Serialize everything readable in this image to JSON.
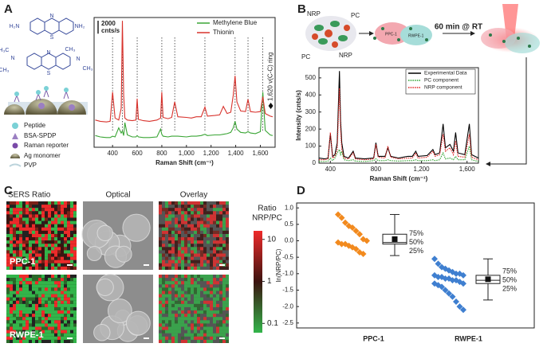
{
  "panel_labels": [
    "A",
    "B",
    "C",
    "D"
  ],
  "panel_a": {
    "molecules": [
      {
        "labels": [
          "H₂N",
          "N",
          "S",
          "NH₂"
        ]
      },
      {
        "labels": [
          "H₃C",
          "N",
          "CH₃",
          "N",
          "S",
          "N",
          "CH₃",
          "CH₃"
        ]
      }
    ],
    "legend": [
      "Peptide",
      "BSA-SPDP",
      "Raman reporter",
      "Ag monomer",
      "PVP"
    ]
  },
  "panel_b": {
    "labels": [
      "NRP",
      "PC",
      "NRP",
      "PC"
    ],
    "cell_labels": [
      "PPC-1",
      "RWPE-1"
    ],
    "step": "60 min @ RT"
  },
  "panel_c": {
    "columns": [
      "SERS Ratio",
      "Optical",
      "Overlay"
    ],
    "rows": [
      "PPC-1",
      "RWPE-1"
    ],
    "colorbar": {
      "title": [
        "Ratio",
        "NRP/PC"
      ],
      "ticks": [
        10,
        1,
        0.1
      ],
      "lim": [
        0.06,
        16
      ],
      "log": true,
      "colors": [
        "#33b54a",
        "#3b1410",
        "#ee2a2a"
      ]
    }
  },
  "chart_data": [
    {
      "type": "line",
      "x_label": "Raman Shift (cm⁻¹)",
      "x": [
        260,
        300,
        350,
        380,
        400,
        420,
        450,
        470,
        480,
        490,
        500,
        520,
        560,
        590,
        600,
        610,
        650,
        700,
        760,
        790,
        800,
        810,
        850,
        880,
        905,
        930,
        1000,
        1040,
        1080,
        1120,
        1150,
        1170,
        1230,
        1270,
        1300,
        1330,
        1360,
        1380,
        1395,
        1410,
        1440,
        1480,
        1500,
        1520,
        1560,
        1600,
        1620,
        1640,
        1680,
        1700
      ],
      "series": [
        {
          "name": "Methylene Blue",
          "color": "#3aa535",
          "values": [
            1800,
            1600,
            1500,
            1500,
            1700,
            1600,
            3000,
            2200,
            2500,
            1800,
            3800,
            1900,
            1600,
            1600,
            1800,
            1600,
            1500,
            1500,
            1600,
            2800,
            2000,
            1700,
            1600,
            1700,
            1700,
            1700,
            1600,
            1700,
            1700,
            1800,
            2000,
            1800,
            1900,
            1900,
            2000,
            2100,
            2300,
            3000,
            4000,
            2800,
            2300,
            2200,
            2400,
            2200,
            2100,
            2400,
            8500,
            2600,
            1900,
            1800
          ]
        },
        {
          "name": "Thionin",
          "color": "#d8322c",
          "values": [
            4200,
            4000,
            3900,
            4000,
            8500,
            4500,
            4200,
            6000,
            19500,
            8000,
            4500,
            4200,
            4100,
            4200,
            7500,
            4300,
            4100,
            4000,
            4200,
            4500,
            8500,
            4600,
            4400,
            4600,
            7000,
            4700,
            4600,
            4500,
            4700,
            4700,
            6200,
            4800,
            4900,
            5000,
            6300,
            5200,
            5400,
            8000,
            11000,
            7000,
            5600,
            5500,
            7400,
            5500,
            5400,
            5500,
            7800,
            5200,
            4800,
            4700
          ]
        }
      ],
      "xlim": [
        250,
        1720
      ],
      "xticks": [
        400,
        600,
        800,
        {
          "value": 1000,
          "label": "1,000"
        },
        {
          "value": 1200,
          "label": "1,200"
        },
        {
          "value": 1400,
          "label": "1,400"
        },
        {
          "value": 1600,
          "label": "1,600"
        }
      ],
      "ylim": [
        0,
        20000
      ],
      "scale_bar": {
        "value": 2000,
        "unit": "cnts/s"
      },
      "reference_lines": [
        400,
        480,
        600,
        800,
        905,
        1150,
        1395,
        1500,
        1620
      ],
      "annotation": {
        "text": "1,620 ν(C-C) ring",
        "x": 1620
      },
      "legend": "upper right"
    },
    {
      "type": "line",
      "x_label": "Raman Shift (cm⁻¹)",
      "y_label": "Intensity (cnts/s)",
      "x": [
        300,
        350,
        380,
        400,
        420,
        440,
        460,
        480,
        490,
        500,
        520,
        560,
        600,
        620,
        700,
        780,
        800,
        820,
        880,
        905,
        930,
        1000,
        1080,
        1120,
        1150,
        1170,
        1250,
        1300,
        1320,
        1360,
        1390,
        1410,
        1450,
        1480,
        1500,
        1520,
        1580,
        1620,
        1640,
        1700
      ],
      "series": [
        {
          "name": "Experimental Data",
          "color": "#000000",
          "style": "solid",
          "values": [
            30,
            25,
            30,
            170,
            40,
            50,
            120,
            540,
            250,
            120,
            40,
            30,
            70,
            30,
            25,
            30,
            120,
            40,
            40,
            90,
            40,
            30,
            40,
            40,
            70,
            40,
            45,
            80,
            50,
            60,
            230,
            90,
            110,
            70,
            180,
            60,
            50,
            230,
            50,
            30
          ]
        },
        {
          "name": "PC component",
          "color": "#2ca02c",
          "style": "dotted",
          "values": [
            10,
            10,
            12,
            30,
            15,
            30,
            60,
            80,
            50,
            70,
            20,
            15,
            20,
            12,
            10,
            15,
            25,
            15,
            15,
            20,
            15,
            12,
            15,
            15,
            20,
            15,
            15,
            20,
            15,
            20,
            60,
            25,
            30,
            20,
            40,
            20,
            20,
            100,
            20,
            10
          ]
        },
        {
          "name": "NRP component",
          "color": "#e0201e",
          "style": "dotted",
          "values": [
            20,
            20,
            25,
            180,
            30,
            40,
            80,
            440,
            200,
            80,
            30,
            25,
            60,
            25,
            20,
            25,
            110,
            35,
            30,
            100,
            35,
            25,
            30,
            30,
            60,
            30,
            35,
            70,
            40,
            50,
            170,
            70,
            90,
            50,
            130,
            40,
            35,
            170,
            35,
            20
          ]
        }
      ],
      "xlim": [
        300,
        1700
      ],
      "xticks": [
        400,
        800,
        {
          "value": 1200,
          "label": "1,200"
        },
        {
          "value": 1600,
          "label": "1,600"
        }
      ],
      "ylim": [
        0,
        560
      ],
      "yticks": [
        0,
        100,
        200,
        300,
        400,
        500
      ],
      "legend": "upper right"
    },
    {
      "type": "box",
      "y_label": "ln(NRP/PC)",
      "categories": [
        "PPC-1",
        "RWPE-1"
      ],
      "ylim": [
        -2.65,
        1.15
      ],
      "yticks": [
        {
          "value": 1,
          "label": "1.0"
        },
        0.5,
        {
          "value": 0,
          "label": "0.0"
        },
        -0.5,
        {
          "value": -1,
          "label": "-1.0"
        },
        -1.5,
        {
          "value": -2,
          "label": "-2.0"
        },
        -2.5
      ],
      "box_labels": [
        "75%",
        "50%",
        "25%"
      ],
      "groups": [
        {
          "color": "#f28a1e",
          "values": [
            0.8,
            0.7,
            0.55,
            0.45,
            0.4,
            0.3,
            0.2,
            0.05,
            0,
            -0.05,
            -0.1,
            -0.1,
            -0.15,
            -0.2,
            -0.25,
            -0.35,
            -0.4
          ],
          "box": {
            "whisker_low": -0.45,
            "q1": -0.1,
            "median": -0.05,
            "q3": 0.2,
            "whisker_high": 0.8,
            "mean": 0.05
          }
        },
        {
          "color": "#3f7fd0",
          "values": [
            -0.55,
            -0.7,
            -0.8,
            -0.85,
            -0.9,
            -0.95,
            -1,
            -1,
            -1.05,
            -1.05,
            -1.1,
            -1.1,
            -1.15,
            -1.15,
            -1.2,
            -1.2,
            -1.25,
            -1.3,
            -1.3,
            -1.35,
            -1.4,
            -1.5,
            -1.6,
            -1.7,
            -1.85,
            -2,
            -2.1
          ],
          "box": {
            "whisker_low": -1.8,
            "q1": -1.3,
            "median": -1.2,
            "q3": -1.05,
            "whisker_high": -0.55,
            "mean": -1.17
          }
        }
      ]
    }
  ]
}
